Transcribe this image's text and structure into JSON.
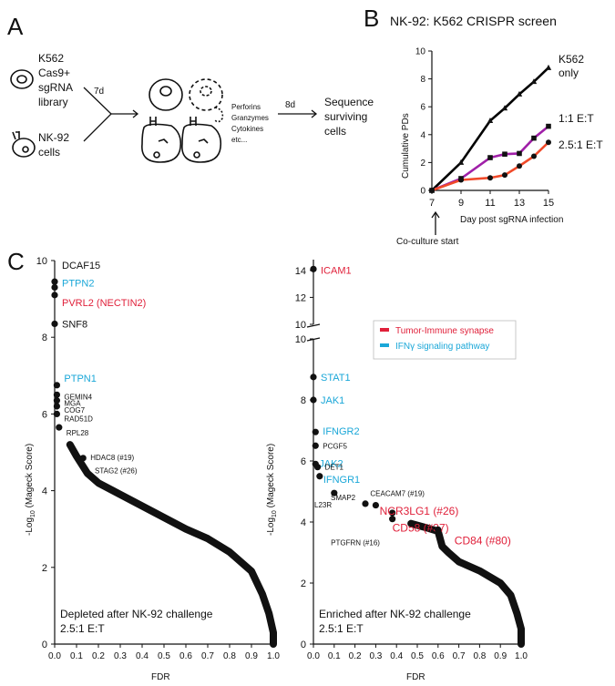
{
  "panel_a": {
    "letter": "A",
    "k562": [
      "K562",
      "Cas9+",
      "sgRNA",
      "library"
    ],
    "nk92": [
      "NK-92",
      "cells"
    ],
    "days1": "7d",
    "factors": [
      "Perforins",
      "Granzymes",
      "Cytokines",
      "etc..."
    ],
    "days2": "8d",
    "sequence": [
      "Sequence",
      "surviving",
      "cells"
    ]
  },
  "panel_b": {
    "letter": "B",
    "title": "NK-92: K562 CRISPR screen",
    "ylabel": "Cumulative PDs",
    "xlabel": "Day post sgRNA infection",
    "annotation": "Co-culture start",
    "labels": [
      "K562",
      "only",
      "1:1 E:T",
      "2.5:1 E:T"
    ],
    "colors": {
      "k562": "#000000",
      "ratio1": "#a020a8",
      "ratio25": "#f04a2a"
    },
    "chart_data": {
      "type": "line",
      "x": [
        7,
        9,
        11,
        12,
        13,
        14,
        15
      ],
      "xticks": [
        7,
        9,
        11,
        13,
        15
      ],
      "yticks": [
        0,
        2,
        4,
        6,
        8,
        10
      ],
      "xlim": [
        7,
        15
      ],
      "ylim": [
        0,
        10
      ],
      "series": [
        {
          "name": "K562 only",
          "values": [
            0,
            2.0,
            5.0,
            5.9,
            6.9,
            7.8,
            8.8
          ]
        },
        {
          "name": "1:1 E:T",
          "values": [
            0,
            0.85,
            2.35,
            2.6,
            2.65,
            3.75,
            4.6
          ]
        },
        {
          "name": "2.5:1 E:T",
          "values": [
            0,
            0.75,
            0.9,
            1.1,
            1.75,
            2.45,
            3.45
          ]
        }
      ]
    }
  },
  "panel_c": {
    "letter": "C",
    "ylabel": "-Log10 (Mageck Score)",
    "xlabel": "FDR",
    "legend": [
      "Tumor-Immune synapse",
      "IFNγ signaling pathway"
    ],
    "colors": {
      "synapse": "#e0203a",
      "ifng": "#1aa7d8"
    },
    "chart_data": [
      {
        "type": "scatter",
        "caption": [
          "Depleted after NK-92 challenge",
          "2.5:1 E:T"
        ],
        "xticks": [
          0.0,
          0.1,
          0.2,
          0.3,
          0.4,
          0.5,
          0.6,
          0.7,
          0.8,
          0.9,
          1.0
        ],
        "yticks": [
          0,
          2,
          4,
          6,
          8,
          10
        ],
        "xlim": [
          0,
          1
        ],
        "ylim": [
          0,
          10
        ],
        "labeled_points": [
          {
            "gene": "DCAF15",
            "fdr": 0.0,
            "score": 9.45,
            "group": ""
          },
          {
            "gene": "PTPN2",
            "fdr": 0.0,
            "score": 9.3,
            "group": "ifng"
          },
          {
            "gene": "PVRL2 (NECTIN2)",
            "fdr": 0.0,
            "score": 9.1,
            "group": "synapse"
          },
          {
            "gene": "SNF8",
            "fdr": 0.0,
            "score": 8.35,
            "group": ""
          },
          {
            "gene": "PTPN1",
            "fdr": 0.01,
            "score": 6.75,
            "group": "ifng"
          },
          {
            "gene": "GEMIN4",
            "fdr": 0.01,
            "score": 6.5,
            "group": ""
          },
          {
            "gene": "MGA",
            "fdr": 0.01,
            "score": 6.35,
            "group": ""
          },
          {
            "gene": "COG7",
            "fdr": 0.01,
            "score": 6.2,
            "group": ""
          },
          {
            "gene": "RAD51D",
            "fdr": 0.01,
            "score": 6.0,
            "group": ""
          },
          {
            "gene": "RPL28",
            "fdr": 0.02,
            "score": 5.65,
            "group": ""
          },
          {
            "gene": "HDAC8 (#19)",
            "fdr": 0.13,
            "score": 4.85,
            "group": ""
          },
          {
            "gene": "STAG2 (#26)",
            "fdr": 0.15,
            "score": 4.45,
            "group": ""
          }
        ],
        "curve": [
          [
            0.07,
            5.2
          ],
          [
            0.1,
            4.9
          ],
          [
            0.15,
            4.45
          ],
          [
            0.2,
            4.2
          ],
          [
            0.3,
            3.9
          ],
          [
            0.4,
            3.6
          ],
          [
            0.5,
            3.3
          ],
          [
            0.6,
            3.0
          ],
          [
            0.7,
            2.75
          ],
          [
            0.8,
            2.4
          ],
          [
            0.9,
            1.9
          ],
          [
            0.95,
            1.3
          ],
          [
            0.98,
            0.8
          ],
          [
            1.0,
            0.3
          ],
          [
            1.0,
            0.0
          ]
        ]
      },
      {
        "type": "scatter",
        "caption": [
          "Enriched after NK-92 challenge",
          "2.5:1 E:T"
        ],
        "xticks": [
          0.0,
          0.1,
          0.2,
          0.3,
          0.4,
          0.5,
          0.6,
          0.7,
          0.8,
          0.9,
          1.0
        ],
        "yticks": [
          0,
          2,
          4,
          6,
          8,
          10
        ],
        "yticks_upper": [
          10,
          12,
          14
        ],
        "xlim": [
          0,
          1
        ],
        "ylim": [
          0,
          10
        ],
        "ylim_upper": [
          10,
          14.8
        ],
        "labeled_points": [
          {
            "gene": "ICAM1",
            "fdr": 0.0,
            "score": 14.1,
            "group": "synapse"
          },
          {
            "gene": "STAT1",
            "fdr": 0.0,
            "score": 8.75,
            "group": "ifng"
          },
          {
            "gene": "JAK1",
            "fdr": 0.0,
            "score": 8.0,
            "group": "ifng"
          },
          {
            "gene": "IFNGR2",
            "fdr": 0.01,
            "score": 6.95,
            "group": "ifng"
          },
          {
            "gene": "PCGF5",
            "fdr": 0.01,
            "score": 6.5,
            "group": ""
          },
          {
            "gene": "JAK2",
            "fdr": 0.01,
            "score": 5.9,
            "group": "ifng"
          },
          {
            "gene": "DET1",
            "fdr": 0.02,
            "score": 5.8,
            "group": ""
          },
          {
            "gene": "IFNGR1",
            "fdr": 0.03,
            "score": 5.5,
            "group": "ifng"
          },
          {
            "gene": "IL23R",
            "fdr": 0.1,
            "score": 4.95,
            "group": ""
          },
          {
            "gene": "SMAP2",
            "fdr": 0.25,
            "score": 4.6,
            "group": ""
          },
          {
            "gene": "CEACAM7 (#19)",
            "fdr": 0.3,
            "score": 4.55,
            "group": ""
          },
          {
            "gene": "NCR3LG1 (#26)",
            "fdr": 0.38,
            "score": 4.3,
            "group": "synapse"
          },
          {
            "gene": "CD58 (#37)",
            "fdr": 0.38,
            "score": 4.1,
            "group": "synapse"
          },
          {
            "gene": "PTGFRN (#16)",
            "fdr": 0.47,
            "score": 3.95,
            "group": ""
          },
          {
            "gene": "CD84 (#80)",
            "fdr": 0.6,
            "score": 3.75,
            "group": "synapse"
          }
        ],
        "curve": [
          [
            0.47,
            3.95
          ],
          [
            0.55,
            3.8
          ],
          [
            0.6,
            3.7
          ],
          [
            0.62,
            3.2
          ],
          [
            0.65,
            3.0
          ],
          [
            0.7,
            2.7
          ],
          [
            0.8,
            2.4
          ],
          [
            0.9,
            2.0
          ],
          [
            0.95,
            1.6
          ],
          [
            0.98,
            1.0
          ],
          [
            1.0,
            0.5
          ],
          [
            1.0,
            0.0
          ]
        ]
      }
    ]
  }
}
